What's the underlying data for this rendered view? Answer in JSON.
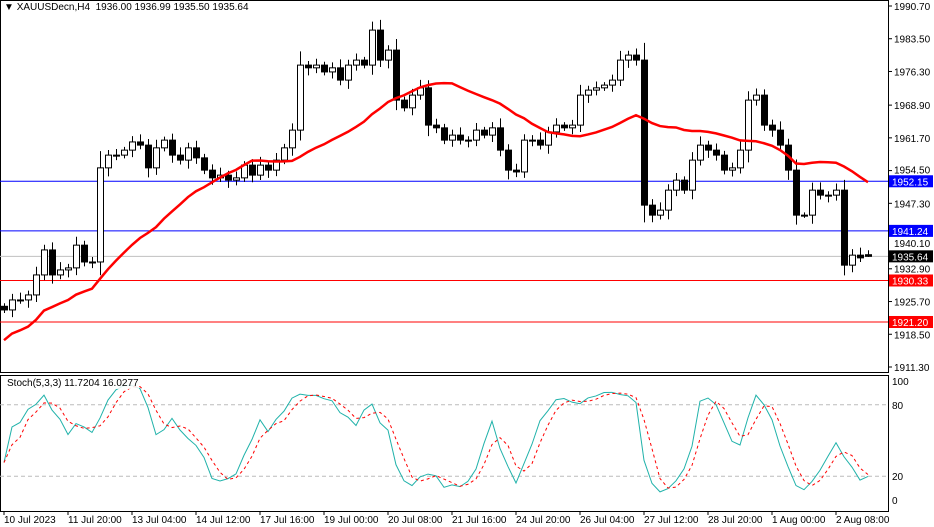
{
  "header": {
    "symbol": "XAUUSDecn,H4",
    "ohlc": "1936.00 1936.99 1935.50 1935.64"
  },
  "stoch": {
    "label": "Stoch(5,3,3) 11.7204 16.0277",
    "levels": [
      100,
      80,
      20,
      0
    ],
    "main_color": "#20B2AA",
    "signal_color": "#FF0000"
  },
  "chart_data": {
    "type": "candlestick",
    "price_ticks": [
      "1990.70",
      "1983.50",
      "1976.30",
      "1968.90",
      "1961.70",
      "1954.50",
      "1947.30",
      "1940.10",
      "1932.90",
      "1925.70",
      "1918.50",
      "1911.30"
    ],
    "ylim": [
      1911.3,
      1990.7
    ],
    "time_labels": [
      "10 Jul 2023",
      "11 Jul 20:00",
      "13 Jul 04:00",
      "14 Jul 12:00",
      "17 Jul 16:00",
      "19 Jul 00:00",
      "20 Jul 08:00",
      "21 Jul 16:00",
      "24 Jul 20:00",
      "26 Jul 04:00",
      "27 Jul 12:00",
      "28 Jul 20:00",
      "1 Aug 00:00",
      "2 Aug 08:00"
    ],
    "closes": [
      1923.85,
      1926.05,
      1926.05,
      1927.15,
      1931.55,
      1937.05,
      1931.55,
      1932.65,
      1933.1,
      1938.1,
      1934.4,
      1934.4,
      1955.1,
      1957.9,
      1957.9,
      1959.0,
      1960.8,
      1960.1,
      1955.1,
      1959.5,
      1961.2,
      1957.9,
      1956.8,
      1959.5,
      1957.3,
      1954.6,
      1952.9,
      1953.5,
      1952.4,
      1952.9,
      1955.7,
      1953.5,
      1955.7,
      1954.6,
      1956.8,
      1959.5,
      1963.4,
      1977.7,
      1977.1,
      1977.7,
      1976.2,
      1977.1,
      1974.4,
      1977.7,
      1978.8,
      1977.7,
      1985.4,
      1978.8,
      1981.0,
      1970.0,
      1968.3,
      1971.1,
      1972.7,
      1964.5,
      1963.9,
      1961.2,
      1962.3,
      1961.2,
      1961.2,
      1963.4,
      1962.3,
      1963.9,
      1959.0,
      1954.6,
      1954.2,
      1961.2,
      1961.2,
      1960.1,
      1963.0,
      1964.5,
      1963.9,
      1964.5,
      1971.1,
      1972.2,
      1972.7,
      1973.3,
      1974.4,
      1978.8,
      1979.9,
      1978.8,
      1946.9,
      1944.7,
      1945.8,
      1950.2,
      1952.4,
      1950.2,
      1956.8,
      1960.1,
      1959.0,
      1957.9,
      1954.6,
      1955.1,
      1959.0,
      1970.0,
      1971.1,
      1964.5,
      1963.4,
      1960.1,
      1954.6,
      1944.7,
      1944.7,
      1950.2,
      1949.1,
      1949.1,
      1950.2,
      1933.7,
      1935.9,
      1935.3,
      1935.64
    ],
    "hlines": [
      {
        "price": "1952.15",
        "color": "#0000FF"
      },
      {
        "price": "1941.24",
        "color": "#0000FF"
      },
      {
        "price": "1930.33",
        "color": "#FF0000"
      },
      {
        "price": "1921.20",
        "color": "#FF0000"
      }
    ],
    "bid": {
      "price": "1935.64",
      "color": "#000000"
    },
    "ma_color": "#FF0000"
  }
}
